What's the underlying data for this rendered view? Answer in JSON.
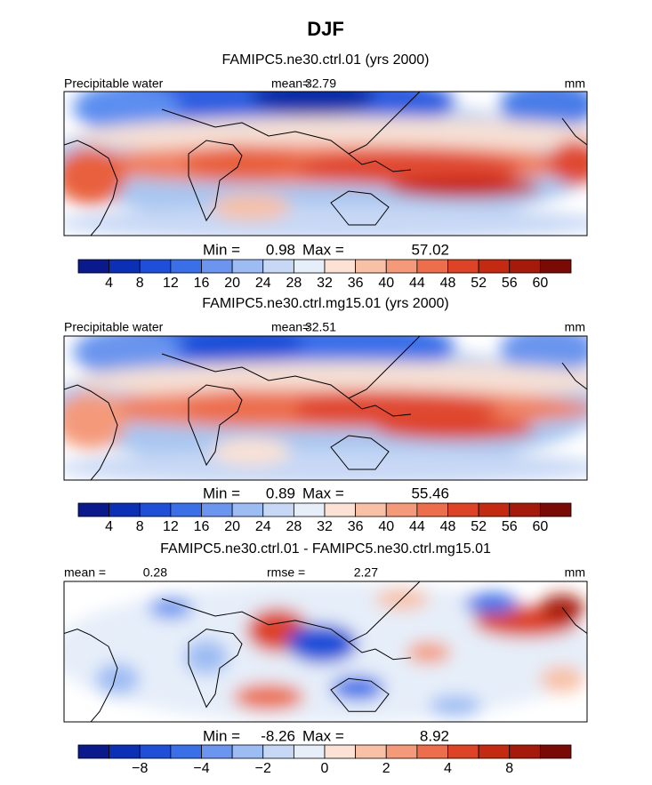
{
  "title": "DJF",
  "panels": [
    {
      "title": "FAMIPC5.ne30.ctrl.01 (yrs 2000)",
      "left_label": "Precipitable water",
      "stat_label": "mean=",
      "stat_value": 32.79,
      "units": "mm",
      "min_label": "Min =",
      "min": 0.98,
      "max_label": "Max =",
      "max": 57.02,
      "colorbar": {
        "colors": [
          "#0a1a8c",
          "#0b2fb5",
          "#1f4fd8",
          "#3b6fe8",
          "#6b95ee",
          "#9dbcf3",
          "#c6d8f6",
          "#e6eef9",
          "#fbe2d4",
          "#f8c0a6",
          "#f49a7a",
          "#ec6e4d",
          "#dd4326",
          "#c42a12",
          "#a51a0a",
          "#7a0a05"
        ],
        "ticks": [
          4,
          8,
          12,
          16,
          20,
          24,
          28,
          32,
          36,
          40,
          44,
          48,
          52,
          56,
          60
        ]
      }
    },
    {
      "title": "FAMIPC5.ne30.ctrl.mg15.01 (yrs 2000)",
      "left_label": "Precipitable water",
      "stat_label": "mean=",
      "stat_value": 32.51,
      "units": "mm",
      "min_label": "Min =",
      "min": 0.89,
      "max_label": "Max =",
      "max": 55.46,
      "colorbar": {
        "colors": [
          "#0a1a8c",
          "#0b2fb5",
          "#1f4fd8",
          "#3b6fe8",
          "#6b95ee",
          "#9dbcf3",
          "#c6d8f6",
          "#e6eef9",
          "#fbe2d4",
          "#f8c0a6",
          "#f49a7a",
          "#ec6e4d",
          "#dd4326",
          "#c42a12",
          "#a51a0a",
          "#7a0a05"
        ],
        "ticks": [
          4,
          8,
          12,
          16,
          20,
          24,
          28,
          32,
          36,
          40,
          44,
          48,
          52,
          56,
          60
        ]
      }
    },
    {
      "title": "FAMIPC5.ne30.ctrl.01 - FAMIPC5.ne30.ctrl.mg15.01",
      "stat_label": "mean =",
      "stat_value": 0.28,
      "stat2_label": "rmse =",
      "stat2_value": 2.27,
      "units": "mm",
      "min_label": "Min =",
      "min": -8.26,
      "max_label": "Max =",
      "max": 8.92,
      "colorbar": {
        "colors": [
          "#0a1a8c",
          "#0b2fb5",
          "#1f4fd8",
          "#3b6fe8",
          "#6b95ee",
          "#9dbcf3",
          "#c6d8f6",
          "#e6eef9",
          "#fbe2d4",
          "#f8c0a6",
          "#f49a7a",
          "#ec6e4d",
          "#dd4326",
          "#c42a12",
          "#a51a0a",
          "#7a0a05"
        ],
        "ticks": [
          {
            "value": -8,
            "label": "−8"
          },
          {
            "value": -4,
            "label": "−4"
          },
          {
            "value": -2,
            "label": "−2"
          },
          0,
          2,
          4,
          8
        ]
      }
    }
  ]
}
